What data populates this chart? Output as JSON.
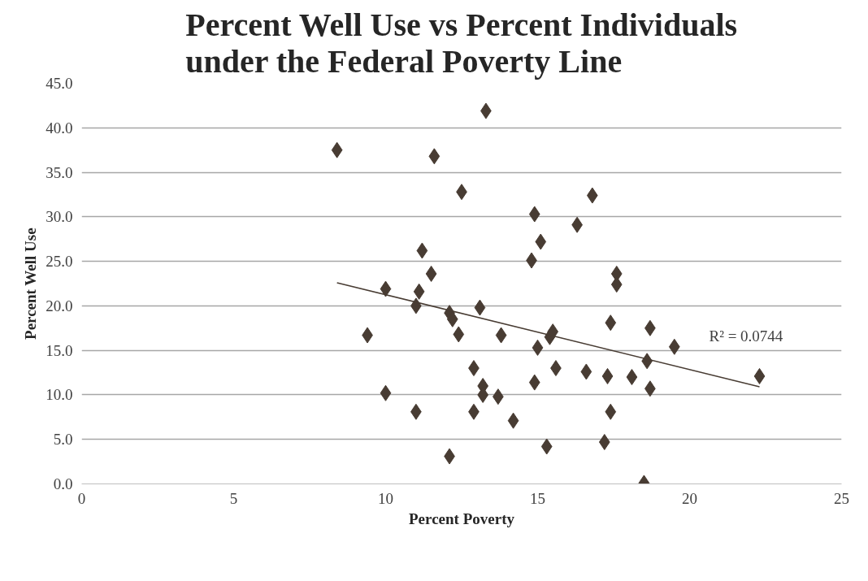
{
  "chart_data": {
    "type": "scatter",
    "title": "Percent Well Use vs Percent Individuals\nunder the Federal Poverty Line",
    "xlabel": "Percent Poverty",
    "ylabel": "Percent Well Use",
    "xlim": [
      0,
      25
    ],
    "xticks": [
      0,
      5,
      10,
      15,
      20,
      25
    ],
    "ylim": [
      0,
      45
    ],
    "yticks": [
      {
        "value": 0,
        "label": "0.0"
      },
      {
        "value": 5,
        "label": "5.0"
      },
      {
        "value": 10,
        "label": "10.0"
      },
      {
        "value": 15,
        "label": "15.0"
      },
      {
        "value": 20,
        "label": "20.0"
      },
      {
        "value": 25,
        "label": "25.0"
      },
      {
        "value": 30,
        "label": "30.0"
      },
      {
        "value": 35,
        "label": "35.0"
      },
      {
        "value": 40,
        "label": "40.0"
      },
      {
        "value": 45,
        "label": "45.0"
      }
    ],
    "grid": "y",
    "series": [
      {
        "marker": "diamond",
        "color": "#483c33",
        "x": [
          8.4,
          9.4,
          10.0,
          10.0,
          11.0,
          11.1,
          11.0,
          11.2,
          11.5,
          11.6,
          12.1,
          12.2,
          12.1,
          12.5,
          12.4,
          12.9,
          12.9,
          13.1,
          13.3,
          13.2,
          13.2,
          13.7,
          13.8,
          14.2,
          14.8,
          14.9,
          15.0,
          14.9,
          15.1,
          15.3,
          15.4,
          15.5,
          15.6,
          16.3,
          16.6,
          16.8,
          17.2,
          17.3,
          17.4,
          17.4,
          17.6,
          17.6,
          18.1,
          18.5,
          18.6,
          18.7,
          18.7,
          19.5,
          22.3
        ],
        "values": [
          37.5,
          16.7,
          21.9,
          10.2,
          20.0,
          21.6,
          8.1,
          26.2,
          23.6,
          36.8,
          19.2,
          18.5,
          3.1,
          32.8,
          16.8,
          13.0,
          8.1,
          19.8,
          41.9,
          11.0,
          10.0,
          9.8,
          16.7,
          7.1,
          25.1,
          30.3,
          15.3,
          11.4,
          27.2,
          4.2,
          16.5,
          17.1,
          13.0,
          29.1,
          12.6,
          32.4,
          4.7,
          12.1,
          18.1,
          8.1,
          23.6,
          22.4,
          12.0,
          0.1,
          13.8,
          17.5,
          10.7,
          15.4,
          12.1
        ]
      },
      {
        "type": "line",
        "marker": "none",
        "line_style": "solid",
        "color": "#483c33",
        "x": [
          8.4,
          22.3
        ],
        "values": [
          22.6,
          10.9
        ]
      }
    ],
    "annotations": [
      "R² = 0.0744"
    ]
  }
}
